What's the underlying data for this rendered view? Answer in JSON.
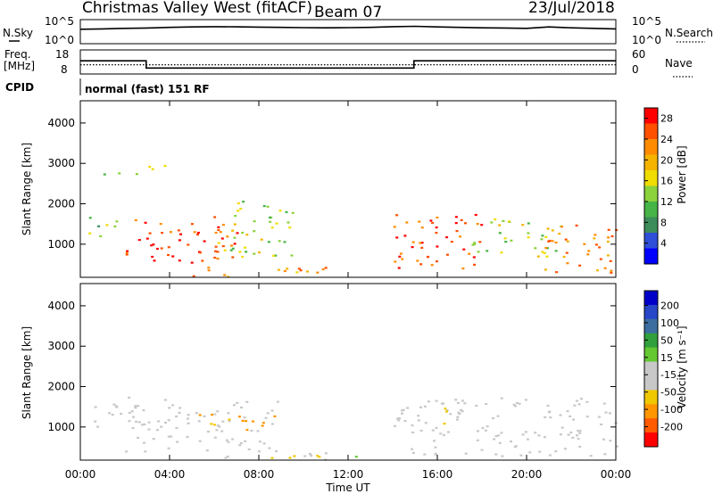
{
  "header": {
    "title": "Christmas Valley West (fitACF)",
    "beam": "Beam 07",
    "date": "23/Jul/2018"
  },
  "status": {
    "nsky_label": "N.Sky",
    "nsky_ticks": [
      "10^5",
      "10^0"
    ],
    "nsearch_label": "N.Search",
    "nsearch_ticks": [
      "10^5",
      "10^0"
    ],
    "freq_label": "Freq.",
    "freq_unit": "[MHz]",
    "freq_ticks": [
      "18",
      "8"
    ],
    "nave_label": "Nave",
    "nave_ticks": [
      "60",
      "0"
    ],
    "cpid_label": "CPID",
    "cpid_text": "normal (fast) 151 RF"
  },
  "colors": {
    "power": [
      "#0000ff",
      "#2f4fd8",
      "#3c8c5a",
      "#46b446",
      "#8cd23c",
      "#f0dc00",
      "#f5b400",
      "#ff8c00",
      "#ff5000",
      "#ff0000"
    ],
    "velocity": [
      "#ff0000",
      "#ff5a00",
      "#ff9600",
      "#f0c800",
      "#c8c8c8",
      "#c8c8c8",
      "#64c832",
      "#32a03c",
      "#3c6ea0",
      "#2846c8",
      "#0000c8"
    ],
    "ground": "#c8c8c8"
  },
  "chart_data": [
    {
      "type": "line",
      "title": "",
      "series": [
        {
          "name": "N.Sky",
          "x": [
            0,
            1,
            2,
            3,
            4,
            5,
            6,
            7,
            8,
            9,
            10,
            11,
            12,
            13,
            14,
            15,
            16,
            17,
            18,
            19,
            20,
            21,
            22,
            23,
            24
          ],
          "y": [
            1000,
            1200,
            1500,
            1800,
            2500,
            3000,
            3500,
            3200,
            2800,
            2500,
            2200,
            2000,
            2200,
            2500,
            3500,
            4000,
            3000,
            2500,
            2000,
            1800,
            1500,
            3000,
            2000,
            1500,
            1200
          ]
        }
      ],
      "xlim": [
        0,
        24
      ],
      "ylim_log10": [
        0,
        5
      ],
      "ylabel": "N.Sky"
    },
    {
      "type": "line",
      "series": [
        {
          "name": "Freq.",
          "x": [
            0,
            2.95,
            2.95,
            14.95,
            14.95,
            24
          ],
          "y": [
            13.5,
            13.5,
            10.5,
            10.5,
            13.5,
            13.5
          ]
        },
        {
          "name": "Nave",
          "x": [
            0,
            24
          ],
          "y": [
            23,
            23
          ]
        }
      ],
      "xlim": [
        0,
        24
      ],
      "ylim_freq": [
        8,
        18
      ],
      "ylim_nave": [
        0,
        60
      ]
    },
    {
      "type": "heatmap",
      "title": "",
      "xlabel": "",
      "ylabel": "Slant Range [km]",
      "xlim": [
        0,
        24
      ],
      "ylim": [
        180,
        4550
      ],
      "xticks": [
        "00:00",
        "04:00",
        "08:00",
        "12:00",
        "16:00",
        "20:00",
        "00:00"
      ],
      "yticks": [
        1000,
        2000,
        3000,
        4000
      ],
      "colorbar_label": "Power [dB]",
      "colorbar_ticks": [
        4,
        8,
        12,
        16,
        20,
        24,
        28
      ],
      "clim": [
        0,
        30
      ],
      "regions": [
        {
          "t0": 2.0,
          "t1": 7.0,
          "r0": 450,
          "r1": 1700,
          "value": 26
        },
        {
          "t0": 6.0,
          "t1": 9.5,
          "r0": 700,
          "r1": 2100,
          "value": 14
        },
        {
          "t0": 5.0,
          "t1": 11.0,
          "r0": 200,
          "r1": 500,
          "value": 22
        },
        {
          "t0": 0.2,
          "t1": 1.6,
          "r0": 1200,
          "r1": 1800,
          "value": 12
        },
        {
          "t0": 14.0,
          "t1": 18.0,
          "r0": 400,
          "r1": 1800,
          "value": 26
        },
        {
          "t0": 17.5,
          "t1": 21.5,
          "r0": 700,
          "r1": 1700,
          "value": 15
        },
        {
          "t0": 20.5,
          "t1": 24.0,
          "r0": 300,
          "r1": 1500,
          "value": 22
        },
        {
          "t0": 1.0,
          "t1": 4.0,
          "r0": 2750,
          "r1": 3000,
          "value": 12
        }
      ]
    },
    {
      "type": "heatmap",
      "title": "",
      "xlabel": "Time UT",
      "ylabel": "Slant Range [km]",
      "xlim": [
        0,
        24
      ],
      "ylim": [
        180,
        4550
      ],
      "xticks": [
        "00:00",
        "04:00",
        "08:00",
        "12:00",
        "16:00",
        "20:00",
        "00:00"
      ],
      "yticks": [
        1000,
        2000,
        3000,
        4000
      ],
      "colorbar_label": "Velocity [m s⁻¹]",
      "colorbar_ticks": [
        200,
        100,
        50,
        15,
        -15,
        -50,
        -100,
        -200
      ],
      "clim": [
        -250,
        250
      ],
      "regions": [
        {
          "t0": 2.0,
          "t1": 9.0,
          "r0": 400,
          "r1": 1700,
          "value": 0
        },
        {
          "t0": 0.5,
          "t1": 2.5,
          "r0": 1000,
          "r1": 1800,
          "value": 0
        },
        {
          "t0": 5.0,
          "t1": 9.0,
          "r0": 950,
          "r1": 1350,
          "value": -120
        },
        {
          "t0": 6.0,
          "t1": 11.0,
          "r0": 200,
          "r1": 450,
          "value": -60
        },
        {
          "t0": 10.0,
          "t1": 12.5,
          "r0": 200,
          "r1": 400,
          "value": 30
        },
        {
          "t0": 14.0,
          "t1": 24.0,
          "r0": 300,
          "r1": 1750,
          "value": 0
        },
        {
          "t0": 16.0,
          "t1": 17.0,
          "r0": 1100,
          "r1": 1500,
          "value": -80
        }
      ]
    }
  ],
  "bottom_axis": {
    "label": "Time UT"
  }
}
